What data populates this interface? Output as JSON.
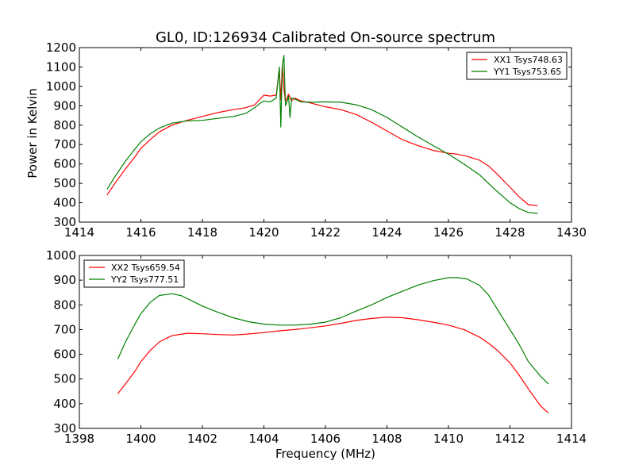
{
  "chart_data": [
    {
      "type": "line",
      "title": "GL0, ID:126934 Calibrated On-source spectrum",
      "xlabel": "",
      "ylabel": "Power in Kelvin",
      "xlim": [
        1414,
        1430
      ],
      "ylim": [
        300,
        1200
      ],
      "xticks": [
        1414,
        1416,
        1418,
        1420,
        1422,
        1424,
        1426,
        1428,
        1430
      ],
      "yticks": [
        300,
        400,
        500,
        600,
        700,
        800,
        900,
        1000,
        1100,
        1200
      ],
      "grid": false,
      "legend": "top-right",
      "series": [
        {
          "name": "XX1 Tsys748.63",
          "color": "#ff0000",
          "x": [
            1414.9,
            1415.2,
            1415.5,
            1415.8,
            1416.0,
            1416.3,
            1416.6,
            1417.0,
            1417.5,
            1418.0,
            1418.5,
            1419.0,
            1419.4,
            1419.7,
            1419.85,
            1420.0,
            1420.2,
            1420.4,
            1420.5,
            1420.55,
            1420.6,
            1420.65,
            1420.7,
            1420.8,
            1420.9,
            1421.0,
            1421.2,
            1421.5,
            1422.0,
            1422.5,
            1423.0,
            1423.5,
            1424.0,
            1424.5,
            1425.0,
            1425.5,
            1426.0,
            1426.3,
            1426.6,
            1427.0,
            1427.3,
            1427.6,
            1428.0,
            1428.3,
            1428.6,
            1428.9
          ],
          "y": [
            440,
            510,
            575,
            635,
            680,
            725,
            765,
            800,
            825,
            845,
            865,
            880,
            890,
            905,
            930,
            955,
            950,
            955,
            1090,
            930,
            1110,
            990,
            920,
            960,
            925,
            940,
            925,
            915,
            895,
            880,
            855,
            815,
            770,
            725,
            695,
            670,
            655,
            650,
            640,
            620,
            590,
            545,
            480,
            430,
            390,
            385
          ]
        },
        {
          "name": "YY1 Tsys753.65",
          "color": "#008000",
          "x": [
            1414.9,
            1415.2,
            1415.5,
            1415.8,
            1416.0,
            1416.3,
            1416.6,
            1417.0,
            1417.5,
            1418.0,
            1418.5,
            1419.0,
            1419.4,
            1419.7,
            1419.85,
            1420.0,
            1420.2,
            1420.4,
            1420.5,
            1420.55,
            1420.6,
            1420.65,
            1420.7,
            1420.75,
            1420.8,
            1420.85,
            1420.9,
            1421.0,
            1421.2,
            1421.5,
            1422.0,
            1422.5,
            1423.0,
            1423.5,
            1424.0,
            1424.5,
            1425.0,
            1425.5,
            1426.0,
            1426.5,
            1427.0,
            1427.5,
            1428.0,
            1428.3,
            1428.6,
            1428.9
          ],
          "y": [
            470,
            545,
            615,
            675,
            715,
            755,
            785,
            810,
            822,
            825,
            835,
            845,
            860,
            890,
            910,
            925,
            920,
            940,
            1100,
            790,
            1110,
            1160,
            900,
            920,
            950,
            840,
            940,
            935,
            920,
            918,
            920,
            918,
            905,
            880,
            840,
            790,
            740,
            695,
            650,
            600,
            545,
            470,
            400,
            370,
            350,
            345
          ]
        }
      ]
    },
    {
      "type": "line",
      "title": "",
      "xlabel": "Frequency (MHz)",
      "ylabel": "",
      "xlim": [
        1398,
        1414
      ],
      "ylim": [
        300,
        1000
      ],
      "xticks": [
        1398,
        1400,
        1402,
        1404,
        1406,
        1408,
        1410,
        1412,
        1414
      ],
      "yticks": [
        300,
        400,
        500,
        600,
        700,
        800,
        900,
        1000
      ],
      "grid": false,
      "legend": "top-left",
      "series": [
        {
          "name": "XX2 Tsys659.54",
          "color": "#ff0000",
          "x": [
            1399.25,
            1399.5,
            1399.8,
            1400.0,
            1400.3,
            1400.6,
            1401.0,
            1401.5,
            1402.0,
            1402.5,
            1403.0,
            1403.5,
            1404.0,
            1404.5,
            1405.0,
            1405.5,
            1406.0,
            1406.5,
            1407.0,
            1407.5,
            1408.0,
            1408.5,
            1409.0,
            1409.5,
            1410.0,
            1410.5,
            1411.0,
            1411.3,
            1411.6,
            1412.0,
            1412.3,
            1412.6,
            1413.0,
            1413.25
          ],
          "y": [
            440,
            480,
            530,
            570,
            615,
            650,
            675,
            685,
            683,
            680,
            678,
            682,
            688,
            695,
            700,
            707,
            715,
            725,
            737,
            745,
            750,
            748,
            740,
            730,
            718,
            700,
            670,
            645,
            615,
            565,
            515,
            460,
            390,
            363
          ]
        },
        {
          "name": "YY2 Tsys777.51",
          "color": "#008000",
          "x": [
            1399.25,
            1399.5,
            1399.8,
            1400.0,
            1400.3,
            1400.6,
            1401.0,
            1401.3,
            1401.6,
            1402.0,
            1402.5,
            1403.0,
            1403.5,
            1404.0,
            1404.5,
            1405.0,
            1405.5,
            1406.0,
            1406.5,
            1407.0,
            1407.5,
            1408.0,
            1408.5,
            1409.0,
            1409.5,
            1410.0,
            1410.3,
            1410.6,
            1411.0,
            1411.3,
            1411.6,
            1412.0,
            1412.3,
            1412.6,
            1413.0,
            1413.25
          ],
          "y": [
            580,
            650,
            720,
            765,
            810,
            838,
            845,
            838,
            820,
            795,
            770,
            748,
            732,
            722,
            718,
            718,
            722,
            730,
            748,
            775,
            800,
            830,
            855,
            880,
            898,
            910,
            910,
            905,
            880,
            840,
            780,
            700,
            640,
            570,
            510,
            480
          ]
        }
      ]
    }
  ]
}
